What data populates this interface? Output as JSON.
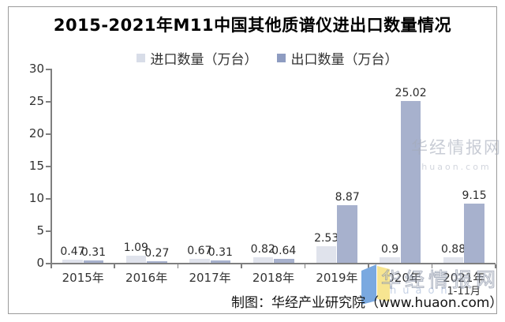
{
  "title": "2015-2021年M11中国其他质谱仪进出口数量情况",
  "legend": {
    "import": {
      "label": "进口数量（万台）",
      "color": "#d8dde8"
    },
    "export": {
      "label": "出口数量（万台）",
      "color": "#8e9cc1"
    }
  },
  "chart_data": {
    "type": "bar",
    "title": "2015-2021年M11中国其他质谱仪进出口数量情况",
    "categories": [
      "2015年",
      "2016年",
      "2017年",
      "2018年",
      "2019年",
      "2020年",
      "2021年"
    ],
    "category_sublabels": [
      "",
      "",
      "",
      "",
      "",
      "",
      "1-11月"
    ],
    "series": [
      {
        "name": "进口数量（万台）",
        "color": "#e0e3ec",
        "values": [
          0.47,
          1.09,
          0.67,
          0.82,
          2.53,
          0.9,
          0.88
        ]
      },
      {
        "name": "出口数量（万台）",
        "color": "#a7b1cd",
        "values": [
          0.31,
          0.27,
          0.31,
          0.64,
          8.87,
          25.02,
          9.15
        ]
      }
    ],
    "xlabel": "",
    "ylabel": "",
    "ylim": [
      0,
      30
    ],
    "y_ticks": [
      0,
      5,
      10,
      15,
      20,
      25,
      30
    ],
    "grid": false,
    "legend_position": "top",
    "data_labels": true
  },
  "watermarks": {
    "right": {
      "text": "华经情报网",
      "subtext": "huaon.com"
    },
    "bottom": {
      "text": "华经情报网",
      "subtext": "huaon"
    }
  },
  "footer": "制图：华经产业研究院（www.huaon.com）",
  "colors": {
    "axis": "#7f7f7f",
    "label_text": "#333333",
    "logo_blue": "#7aa9e0",
    "logo_yellow": "#f7e591"
  }
}
